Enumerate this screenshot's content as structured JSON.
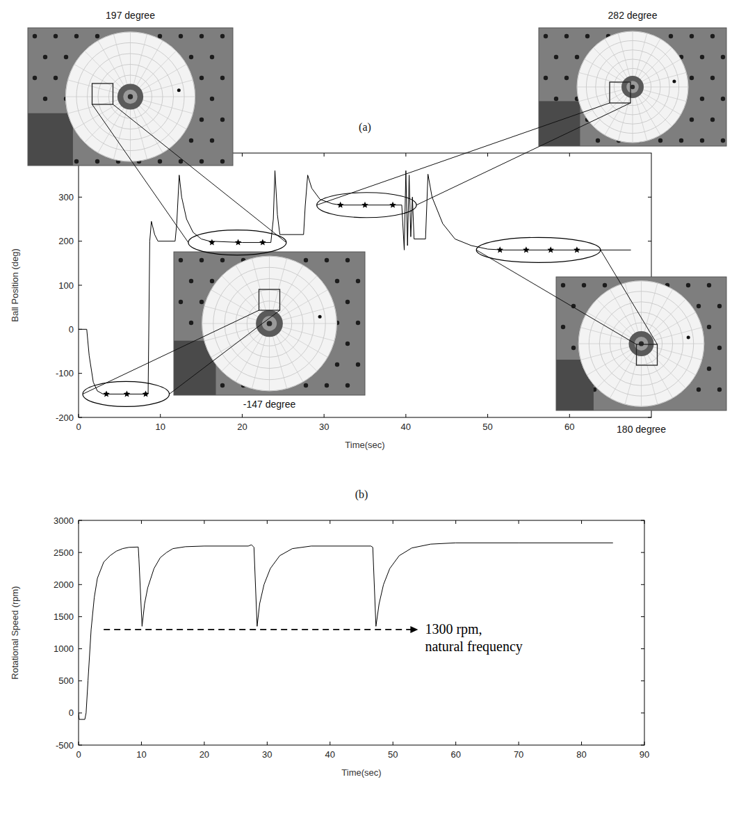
{
  "chart_data": [
    {
      "type": "line",
      "title": "(a)",
      "xlabel": "Time(sec)",
      "ylabel": "Ball Position (deg)",
      "xlim": [
        0,
        70
      ],
      "ylim": [
        -200,
        400
      ],
      "xticks": [
        0,
        10,
        20,
        30,
        40,
        50,
        60
      ],
      "yticks": [
        -200,
        -100,
        0,
        100,
        200,
        300
      ],
      "grid": false,
      "series": [
        {
          "color": "#000000",
          "line_style": "solid",
          "x": [
            0,
            1,
            1.3,
            1.8,
            2.3,
            3,
            8.5,
            8.7,
            8.9,
            9.3,
            9.7,
            11.8,
            12,
            12.3,
            12.6,
            13.2,
            14,
            15,
            16,
            20,
            23.5,
            23.8,
            24,
            24.3,
            24.6,
            27.5,
            27.7,
            28,
            28.5,
            29.5,
            31,
            32,
            39.5,
            39.8,
            40,
            40.2,
            40.4,
            40.6,
            40.8,
            41,
            42.4,
            42.7,
            43.2,
            44.5,
            46,
            48,
            50,
            52,
            67.5
          ],
          "values": [
            0,
            0,
            -60,
            -120,
            -140,
            -147,
            -147,
            200,
            245,
            215,
            200,
            200,
            240,
            350,
            300,
            250,
            220,
            205,
            200,
            197,
            197,
            250,
            360,
            260,
            215,
            215,
            280,
            350,
            320,
            295,
            285,
            282,
            282,
            180,
            360,
            190,
            350,
            210,
            300,
            205,
            205,
            352,
            300,
            240,
            205,
            190,
            182,
            180,
            180
          ]
        }
      ],
      "annotations": [
        {
          "text": "-147 degree",
          "marker": "star",
          "x": [
            3.4,
            5.9,
            8.2
          ],
          "values": [
            -147,
            -147,
            -147
          ]
        },
        {
          "text": "197 degree",
          "marker": "star",
          "x": [
            16.3,
            19.5,
            22.5
          ],
          "values": [
            197,
            197,
            197
          ]
        },
        {
          "text": "282 degree",
          "marker": "star",
          "x": [
            32,
            35,
            38.4
          ],
          "values": [
            282,
            282,
            282
          ]
        },
        {
          "text": "180 degree",
          "marker": "star",
          "x": [
            51.5,
            54.7,
            57.7,
            60.9
          ],
          "values": [
            180,
            180,
            180,
            180
          ]
        }
      ]
    },
    {
      "type": "line",
      "title": "(b)",
      "xlabel": "Time(sec)",
      "ylabel": "Rotational Speed (rpm)",
      "xlim": [
        0,
        90
      ],
      "ylim": [
        -500,
        3000
      ],
      "xticks": [
        0,
        10,
        20,
        30,
        40,
        50,
        60,
        70,
        80,
        90
      ],
      "yticks": [
        -500,
        0,
        500,
        1000,
        1500,
        2000,
        2500,
        3000
      ],
      "grid": false,
      "series": [
        {
          "color": "#000000",
          "line_style": "solid",
          "x": [
            0,
            0.1,
            1,
            1.2,
            1.5,
            2,
            2.5,
            3,
            4,
            5,
            6,
            7,
            8,
            9.5,
            9.6,
            10.1,
            10.5,
            11,
            12,
            13,
            14,
            15,
            17,
            20,
            27,
            27.5,
            27.9,
            28.4,
            28.8,
            29.5,
            30.5,
            32,
            34,
            37,
            46.5,
            46.8,
            47.3,
            47.8,
            48.5,
            49.5,
            51,
            53,
            56,
            60,
            70,
            85
          ],
          "values": [
            0,
            -100,
            -100,
            0,
            500,
            1300,
            1800,
            2100,
            2350,
            2450,
            2520,
            2560,
            2580,
            2585,
            2400,
            1350,
            1700,
            1950,
            2250,
            2420,
            2500,
            2560,
            2590,
            2600,
            2600,
            2620,
            2580,
            1350,
            1700,
            2000,
            2250,
            2450,
            2560,
            2600,
            2600,
            2580,
            1350,
            1700,
            2000,
            2250,
            2450,
            2570,
            2630,
            2650,
            2650,
            2650
          ]
        }
      ],
      "annotations": [
        {
          "text": [
            "1300 rpm,",
            "natural frequency"
          ],
          "x": [
            4,
            54
          ],
          "y": 1300,
          "line_style": "dashed"
        }
      ]
    }
  ]
}
